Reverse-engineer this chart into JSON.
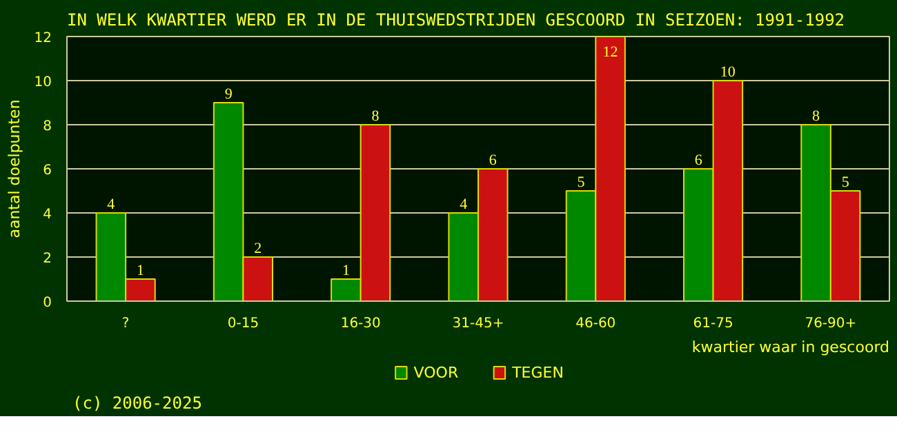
{
  "chart_data": {
    "type": "bar",
    "title": "IN WELK KWARTIER WERD ER IN DE THUISWEDSTRIJDEN GESCOORD IN SEIZOEN: 1991-1992",
    "xlabel": "kwartier waar in gescoord",
    "ylabel": "aantal doelpunten",
    "categories": [
      "?",
      "0-15",
      "16-30",
      "31-45+",
      "46-60",
      "61-75",
      "76-90+"
    ],
    "series": [
      {
        "name": "VOOR",
        "color": "#008800",
        "values": [
          4,
          9,
          1,
          4,
          5,
          6,
          8
        ]
      },
      {
        "name": "TEGEN",
        "color": "#cc1111",
        "values": [
          1,
          2,
          8,
          6,
          12,
          10,
          5
        ]
      }
    ],
    "ylim": [
      0,
      12
    ],
    "yticks": [
      0,
      2,
      4,
      6,
      8,
      10,
      12
    ],
    "grid": "y",
    "legend": "bottom",
    "data_labels": true,
    "annotations": [
      "(c) 2006-2025"
    ]
  }
}
